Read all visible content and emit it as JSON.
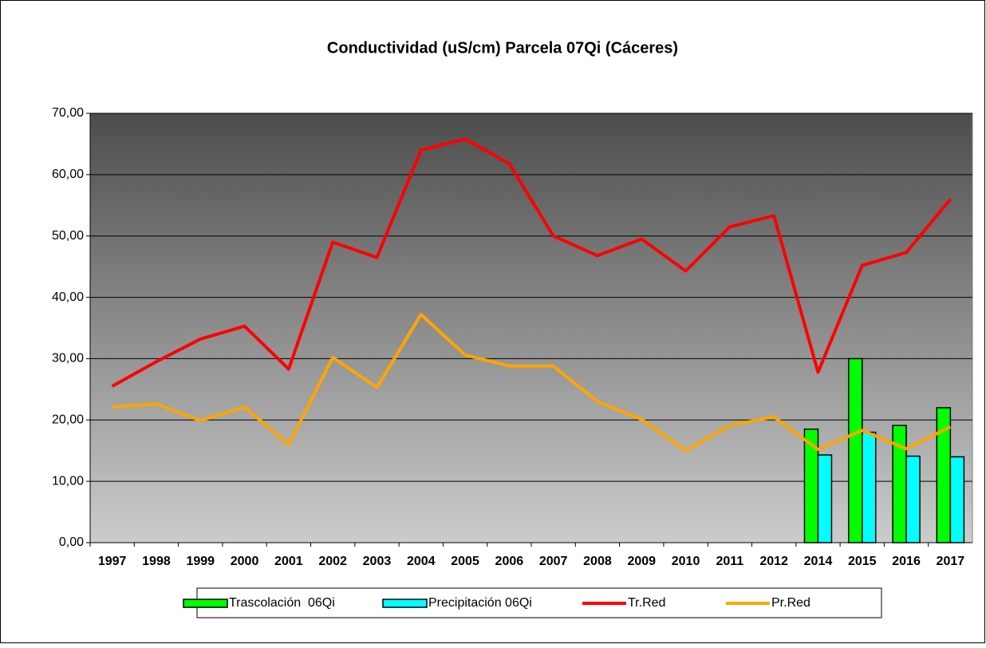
{
  "chart_data": {
    "type": "bar",
    "title": "Conductividad (uS/cm) Parcela 07Qi (Cáceres)",
    "categories": [
      "1997",
      "1998",
      "1999",
      "2000",
      "2001",
      "2002",
      "2003",
      "2004",
      "2005",
      "2006",
      "2007",
      "2008",
      "2009",
      "2010",
      "2011",
      "2012",
      "2014",
      "2015",
      "2016",
      "2017"
    ],
    "series": [
      {
        "name": "Trascolación  06Qi",
        "type": "bar",
        "color": "#00ff00",
        "values": [
          null,
          null,
          null,
          null,
          null,
          null,
          null,
          null,
          null,
          null,
          null,
          null,
          null,
          null,
          null,
          null,
          18.5,
          30.0,
          19.1,
          22.0
        ]
      },
      {
        "name": "Precipitación 06Qi",
        "type": "bar",
        "color": "#00ffff",
        "values": [
          null,
          null,
          null,
          null,
          null,
          null,
          null,
          null,
          null,
          null,
          null,
          null,
          null,
          null,
          null,
          null,
          14.3,
          18.0,
          14.1,
          14.0
        ]
      },
      {
        "name": "Tr.Red",
        "type": "line",
        "color": "#ff0000",
        "values": [
          25.5,
          29.5,
          33.2,
          35.3,
          28.3,
          49.0,
          46.5,
          64.0,
          65.8,
          61.8,
          50.0,
          46.8,
          49.5,
          44.3,
          51.5,
          53.3,
          27.8,
          45.2,
          47.3,
          56.0
        ]
      },
      {
        "name": "Pr.Red",
        "type": "line",
        "color": "#ffa500",
        "values": [
          22.1,
          22.6,
          19.9,
          22.1,
          16.0,
          30.2,
          25.3,
          37.2,
          30.6,
          28.8,
          28.8,
          23.0,
          20.1,
          15.0,
          19.1,
          20.5,
          15.2,
          18.3,
          15.3,
          18.9
        ]
      }
    ],
    "ylim": [
      0,
      70
    ],
    "yticks": [
      {
        "value": 0,
        "label": "0,00"
      },
      {
        "value": 10,
        "label": "10,00"
      },
      {
        "value": 20,
        "label": "20,00"
      },
      {
        "value": 30,
        "label": "30,00"
      },
      {
        "value": 40,
        "label": "40,00"
      },
      {
        "value": 50,
        "label": "50,00"
      },
      {
        "value": 60,
        "label": "60,00"
      },
      {
        "value": 70,
        "label": "70,00"
      }
    ],
    "grid": true,
    "legend": "bottom"
  }
}
